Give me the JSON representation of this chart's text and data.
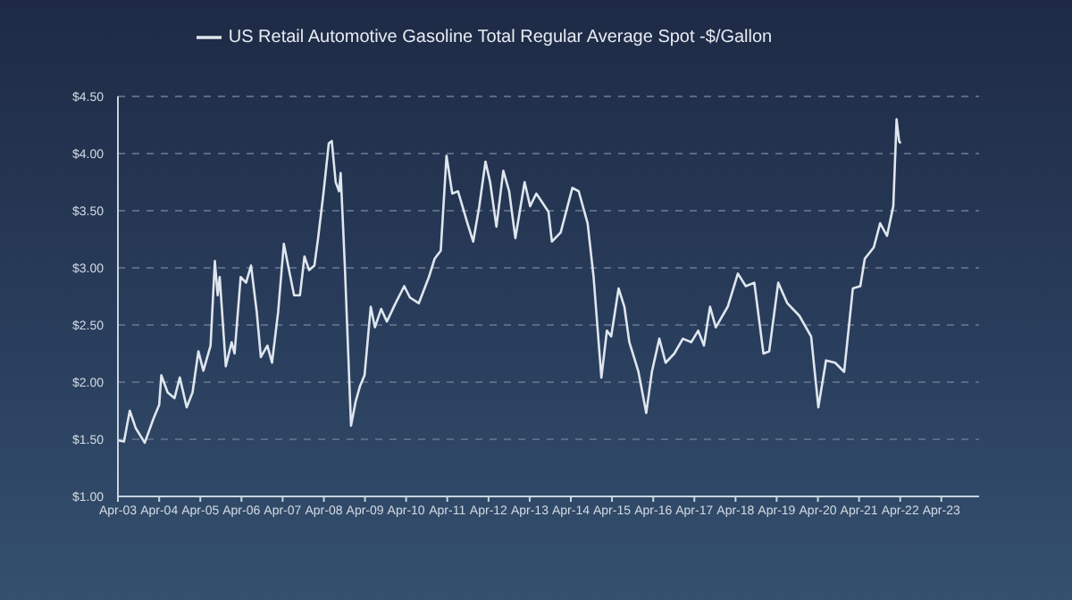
{
  "chart_data": {
    "type": "line",
    "legend": "top",
    "grid": "y",
    "marker": "none",
    "line_style": "solid",
    "ylim": [
      1,
      4.5
    ],
    "yticks": [
      {
        "value": 1,
        "label": "$1.00"
      },
      {
        "value": 1.5,
        "label": "$1.50"
      },
      {
        "value": 2,
        "label": "$2.00"
      },
      {
        "value": 2.5,
        "label": "$2.50"
      },
      {
        "value": 3,
        "label": "$3.00"
      },
      {
        "value": 3.5,
        "label": "$3.50"
      },
      {
        "value": 4,
        "label": "$4.00"
      },
      {
        "value": 4.5,
        "label": "$4.50"
      }
    ],
    "xlim": [
      "2003-04",
      "2024-03"
    ],
    "xticks": [
      {
        "value": "2003-04",
        "label": "Apr-03"
      },
      {
        "value": "2004-04",
        "label": "Apr-04"
      },
      {
        "value": "2005-04",
        "label": "Apr-05"
      },
      {
        "value": "2006-04",
        "label": "Apr-06"
      },
      {
        "value": "2007-04",
        "label": "Apr-07"
      },
      {
        "value": "2008-04",
        "label": "Apr-08"
      },
      {
        "value": "2009-04",
        "label": "Apr-09"
      },
      {
        "value": "2010-04",
        "label": "Apr-10"
      },
      {
        "value": "2011-04",
        "label": "Apr-11"
      },
      {
        "value": "2012-04",
        "label": "Apr-12"
      },
      {
        "value": "2013-04",
        "label": "Apr-13"
      },
      {
        "value": "2014-04",
        "label": "Apr-14"
      },
      {
        "value": "2015-04",
        "label": "Apr-15"
      },
      {
        "value": "2016-04",
        "label": "Apr-16"
      },
      {
        "value": "2017-04",
        "label": "Apr-17"
      },
      {
        "value": "2018-04",
        "label": "Apr-18"
      },
      {
        "value": "2019-04",
        "label": "Apr-19"
      },
      {
        "value": "2020-04",
        "label": "Apr-20"
      },
      {
        "value": "2021-04",
        "label": "Apr-21"
      },
      {
        "value": "2022-04",
        "label": "Apr-22"
      },
      {
        "value": "2023-04",
        "label": "Apr-23"
      }
    ],
    "x": [
      "2003-04-01",
      "2003-05-25",
      "2003-07-15",
      "2003-09-05",
      "2003-11-25",
      "2004-02-10",
      "2004-04-01",
      "2004-04-20",
      "2004-06-15",
      "2004-08-15",
      "2004-10-01",
      "2004-12-01",
      "2005-01-22",
      "2005-03-15",
      "2005-04-28",
      "2005-07-01",
      "2005-08-08",
      "2005-09-02",
      "2005-09-20",
      "2005-11-13",
      "2006-01-04",
      "2006-01-30",
      "2006-03-25",
      "2006-05-12",
      "2006-06-25",
      "2006-08-15",
      "2006-09-20",
      "2006-11-17",
      "2006-12-28",
      "2007-02-20",
      "2007-04-12",
      "2007-05-30",
      "2007-07-12",
      "2007-09-02",
      "2007-10-12",
      "2007-11-22",
      "2008-01-08",
      "2008-02-10",
      "2008-03-28",
      "2008-05-15",
      "2008-06-10",
      "2008-07-15",
      "2008-08-14",
      "2008-08-28",
      "2008-10-04",
      "2008-11-28",
      "2009-01-08",
      "2009-02-14",
      "2009-03-28",
      "2009-05-22",
      "2009-06-28",
      "2009-08-22",
      "2009-10-12",
      "2009-12-28",
      "2010-03-15",
      "2010-05-05",
      "2010-07-22",
      "2010-10-20",
      "2010-12-10",
      "2011-02-02",
      "2011-03-25",
      "2011-05-15",
      "2011-07-05",
      "2011-09-27",
      "2011-11-17",
      "2012-01-10",
      "2012-03-05",
      "2012-04-15",
      "2012-06-10",
      "2012-08-10",
      "2012-10-01",
      "2012-11-25",
      "2013-02-15",
      "2013-04-05",
      "2013-05-30",
      "2013-09-15",
      "2013-10-15",
      "2014-01-01",
      "2014-04-15",
      "2014-06-10",
      "2014-08-28",
      "2014-10-20",
      "2014-12-28",
      "2015-02-15",
      "2015-03-25",
      "2015-05-30",
      "2015-07-20",
      "2015-09-02",
      "2015-11-22",
      "2016-01-30",
      "2016-03-20",
      "2016-05-25",
      "2016-07-20",
      "2016-10-05",
      "2016-12-20",
      "2017-03-05",
      "2017-05-05",
      "2017-06-25",
      "2017-08-18",
      "2017-10-08",
      "2018-01-22",
      "2018-04-22",
      "2018-07-01",
      "2018-09-15",
      "2018-12-05",
      "2019-01-25",
      "2019-04-15",
      "2019-07-05",
      "2019-10-20",
      "2020-02-01",
      "2020-04-05",
      "2020-06-12",
      "2020-09-01",
      "2020-11-20",
      "2021-02-05",
      "2021-04-12",
      "2021-05-22",
      "2021-08-10",
      "2021-10-05",
      "2021-12-05",
      "2022-01-30",
      "2022-02-28",
      "2022-03-22",
      "2022-04-05"
    ],
    "series": [
      {
        "name": "US Retail Automotive Gasoline Total Regular Average Spot -$/Gallon",
        "color": "#dfe6ee",
        "values": [
          1.49,
          1.48,
          1.75,
          1.6,
          1.47,
          1.68,
          1.8,
          2.06,
          1.91,
          1.86,
          2.04,
          1.78,
          1.91,
          2.27,
          2.1,
          2.32,
          3.06,
          2.76,
          2.92,
          2.14,
          2.35,
          2.25,
          2.92,
          2.87,
          3.02,
          2.61,
          2.22,
          2.32,
          2.17,
          2.61,
          3.21,
          2.97,
          2.76,
          2.76,
          3.1,
          2.98,
          3.02,
          3.26,
          3.65,
          4.09,
          4.11,
          3.75,
          3.67,
          3.83,
          3.02,
          1.62,
          1.83,
          1.96,
          2.06,
          2.66,
          2.48,
          2.64,
          2.53,
          2.69,
          2.84,
          2.74,
          2.69,
          2.92,
          3.08,
          3.15,
          3.98,
          3.65,
          3.67,
          3.39,
          3.23,
          3.54,
          3.93,
          3.75,
          3.36,
          3.85,
          3.67,
          3.26,
          3.75,
          3.54,
          3.65,
          3.49,
          3.23,
          3.31,
          3.7,
          3.67,
          3.39,
          2.92,
          2.04,
          2.45,
          2.4,
          2.82,
          2.66,
          2.35,
          2.09,
          1.73,
          2.09,
          2.38,
          2.17,
          2.25,
          2.38,
          2.35,
          2.45,
          2.32,
          2.66,
          2.48,
          2.66,
          2.95,
          2.84,
          2.87,
          2.25,
          2.27,
          2.87,
          2.69,
          2.58,
          2.4,
          1.78,
          2.19,
          2.17,
          2.09,
          2.82,
          2.84,
          3.08,
          3.18,
          3.39,
          3.28,
          3.54,
          4.3,
          4.11,
          4.09
        ]
      }
    ]
  }
}
